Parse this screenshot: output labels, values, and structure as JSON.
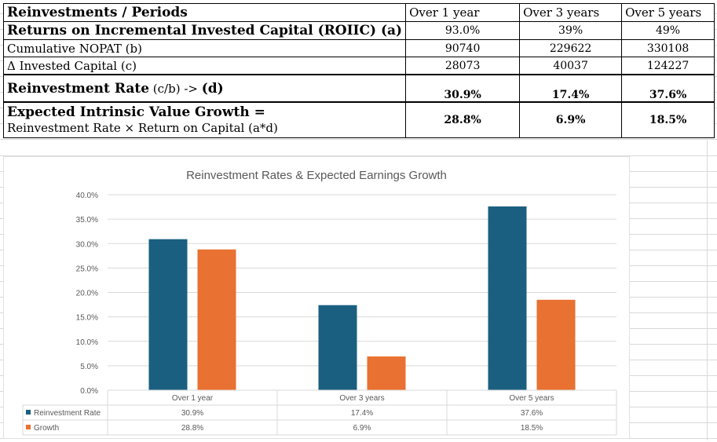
{
  "table": {
    "header": {
      "label": "Reinvestments / Periods",
      "periods": [
        "Over 1 year",
        "Over 3 years",
        "Over 5 years"
      ]
    },
    "rows": [
      {
        "label": "Returns on Incremental Invested Capital (ROIIC) (a)",
        "values": [
          "93.0%",
          "39%",
          "49%"
        ]
      },
      {
        "label": "Cumulative NOPAT (b)",
        "values": [
          "90740",
          "229622",
          "330108"
        ]
      },
      {
        "label": "Δ Invested Capital (c)",
        "values": [
          "28073",
          "40037",
          "124227"
        ]
      }
    ],
    "reinvestment_rate": {
      "label_bold": "Reinvestment Rate",
      "label_mid": " (c/b) -> ",
      "label_tail": "(d)",
      "values": [
        "30.9%",
        "17.4%",
        "37.6%"
      ]
    },
    "growth": {
      "label_line1": "Expected Intrinsic Value Growth =",
      "label_line2": "Reinvestment Rate × Return on Capital (a*d)",
      "values": [
        "28.8%",
        "6.9%",
        "18.5%"
      ]
    }
  },
  "chart_data": {
    "type": "bar",
    "title": "Reinvestment Rates & Expected Earnings Growth",
    "categories": [
      "Over 1 year",
      "Over 3 years",
      "Over 5 years"
    ],
    "ylim": [
      0,
      40
    ],
    "yticks": [
      "0.0%",
      "5.0%",
      "10.0%",
      "15.0%",
      "20.0%",
      "25.0%",
      "30.0%",
      "35.0%",
      "40.0%"
    ],
    "grid": true,
    "series": [
      {
        "name": "Reinvestment Rate",
        "values": [
          30.9,
          17.4,
          37.6
        ],
        "labels": [
          "30.9%",
          "17.4%",
          "37.6%"
        ],
        "color": "#1a5f80"
      },
      {
        "name": "Growth",
        "values": [
          28.8,
          6.9,
          18.5
        ],
        "labels": [
          "28.8%",
          "6.9%",
          "18.5%"
        ],
        "color": "#e97131"
      }
    ]
  }
}
